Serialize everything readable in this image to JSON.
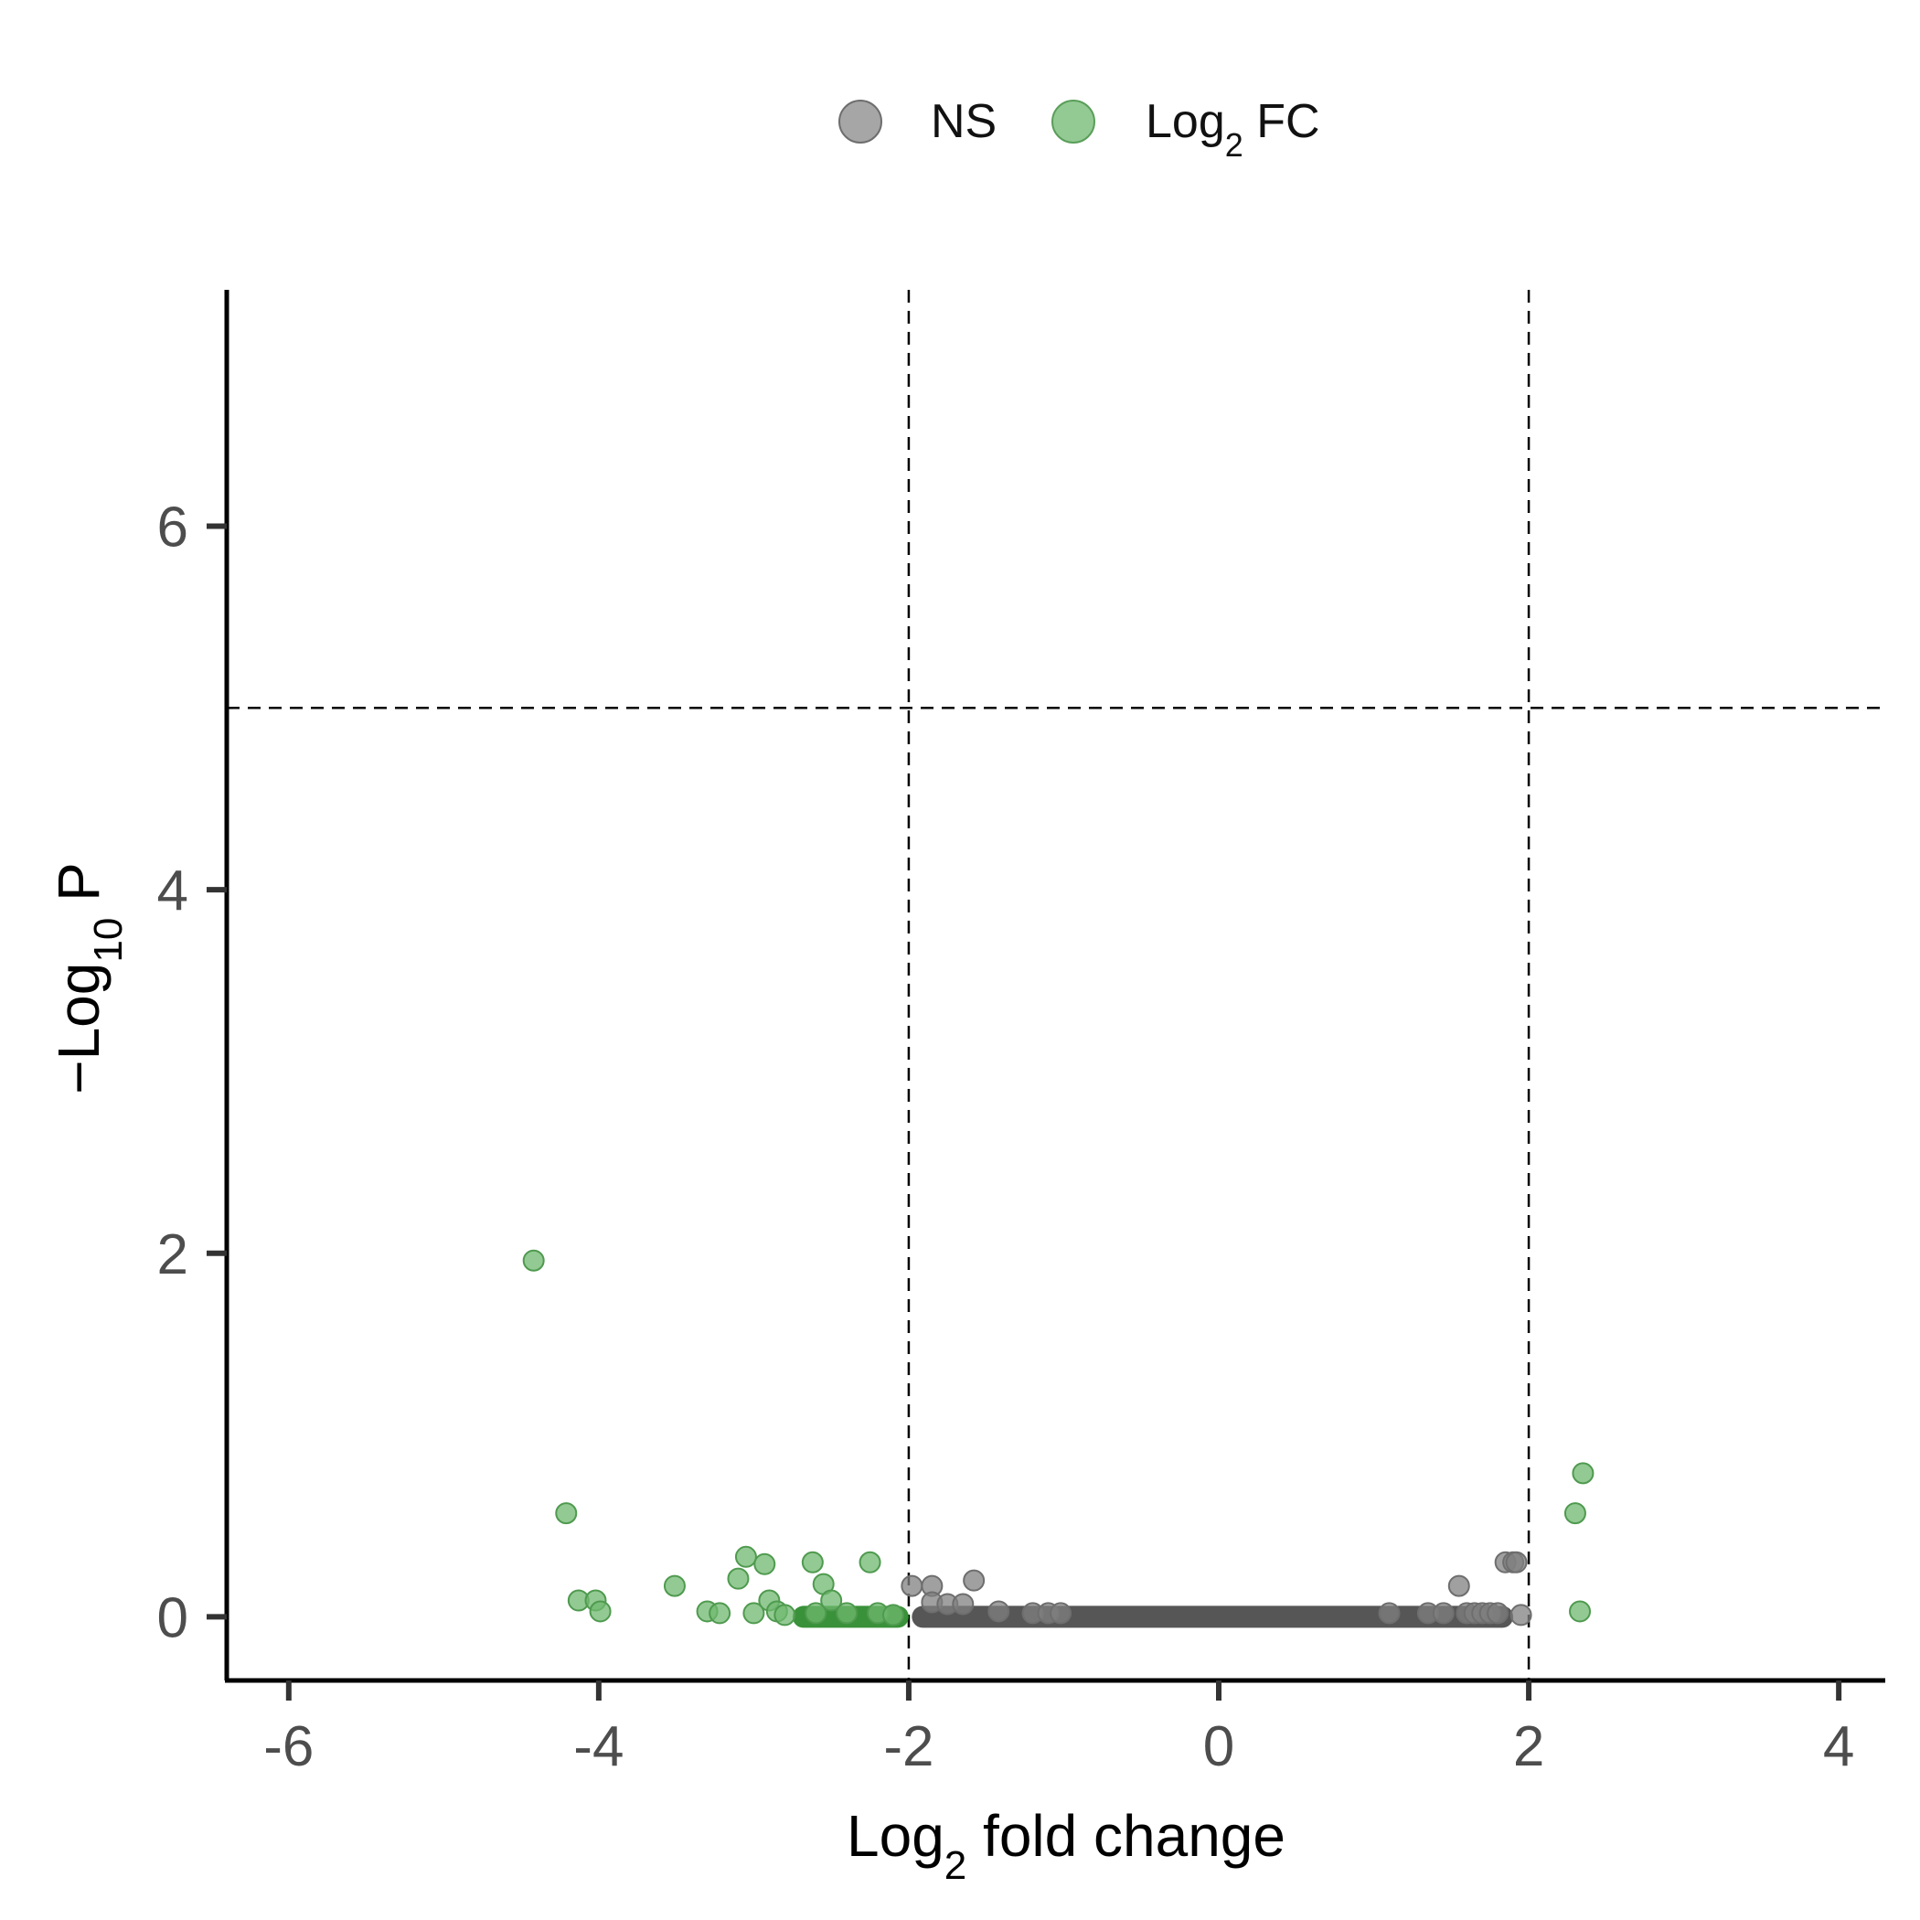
{
  "chart_data": {
    "type": "scatter",
    "title": "",
    "xlabel": "Log2 fold change",
    "ylabel": "-Log10 P",
    "xlim": [
      -6.4,
      4.3
    ],
    "ylim": [
      -0.35,
      7.3
    ],
    "x_ticks": [
      -6,
      -4,
      -2,
      0,
      2,
      4
    ],
    "y_ticks": [
      0,
      2,
      4,
      6
    ],
    "x_tick_labels": [
      "-6",
      "-4",
      "-2",
      "0",
      "2",
      "4"
    ],
    "y_tick_labels": [
      "0",
      "2",
      "4",
      "6"
    ],
    "grid": false,
    "legend": {
      "position": "top",
      "entries": [
        {
          "label": "NS",
          "color": "#808080"
        },
        {
          "label": "Log2 FC",
          "color": "#6fb86f"
        }
      ]
    },
    "cutoffs": {
      "fold_change": [
        -2,
        2
      ],
      "neg_log10_p": 5
    },
    "series": [
      {
        "name": "NS",
        "color": "#808080",
        "x": [
          -1.98,
          -1.85,
          -1.85,
          -1.58,
          -1.75,
          -1.65,
          -1.42,
          -1.2,
          -1.1,
          -1.02,
          1.1,
          1.35,
          1.45,
          1.55,
          1.6,
          1.65,
          1.7,
          1.75,
          1.8,
          1.85,
          1.9,
          1.95,
          1.92
        ],
        "y": [
          0.17,
          0.17,
          0.08,
          0.2,
          0.07,
          0.07,
          0.03,
          0.02,
          0.02,
          0.02,
          0.02,
          0.02,
          0.02,
          0.17,
          0.02,
          0.02,
          0.02,
          0.02,
          0.02,
          0.3,
          0.3,
          0.01,
          0.3
        ],
        "band": {
          "x_range": [
            -1.98,
            1.9
          ],
          "y": 0.0
        }
      },
      {
        "name": "Log2 FC",
        "color": "#6fb86f",
        "x": [
          -4.42,
          -4.21,
          -4.13,
          -4.02,
          -3.99,
          -3.51,
          -3.3,
          -3.22,
          -3.1,
          -3.05,
          -2.93,
          -2.9,
          -2.62,
          -2.55,
          -2.5,
          -2.25,
          -3.0,
          -2.85,
          -2.8,
          -2.6,
          -2.4,
          -2.2,
          -2.1,
          2.3,
          2.35,
          2.33
        ],
        "y": [
          1.96,
          0.57,
          0.09,
          0.09,
          0.03,
          0.17,
          0.03,
          0.02,
          0.21,
          0.33,
          0.29,
          0.09,
          0.3,
          0.18,
          0.09,
          0.3,
          0.02,
          0.03,
          0.01,
          0.02,
          0.02,
          0.02,
          0.01,
          0.57,
          0.79,
          0.03
        ],
        "band": {
          "x_range": [
            -2.75,
            -2.0
          ],
          "y": 0.0
        }
      }
    ]
  }
}
